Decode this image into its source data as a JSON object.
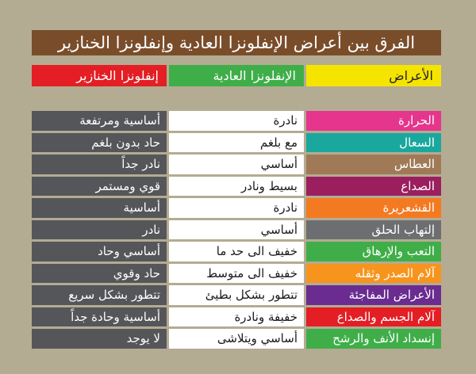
{
  "title": "الفرق بين أعراض الإنفلونزا العادية وإنفلونزا الخنازير",
  "headers": {
    "symptoms": "الأعراض",
    "normal": "الإنفلونزا العادية",
    "swine": "إنفلونزا الخنازير"
  },
  "colors": {
    "title_bg": "#7a4d2a",
    "symptoms_header": "#f5e400",
    "normal_header": "#3fae49",
    "swine_header": "#e31e24",
    "swine_cells": "#555659"
  },
  "rows": [
    {
      "symptom": "الحرارة",
      "normal": "نادرة",
      "swine": "أساسية ومرتفعة",
      "color": "#e5358c"
    },
    {
      "symptom": "السعال",
      "normal": "مع بلغم",
      "swine": "حاد بدون بلغم",
      "color": "#1aa89e"
    },
    {
      "symptom": "العطاس",
      "normal": "أساسي",
      "swine": "نادر جداً",
      "color": "#a07a57"
    },
    {
      "symptom": "الصداع",
      "normal": "بسيط ونادر",
      "swine": "قوي ومستمر",
      "color": "#9b1f5f"
    },
    {
      "symptom": "القشعريرة",
      "normal": "نادرة",
      "swine": "أساسية",
      "color": "#f47a22"
    },
    {
      "symptom": "إلتهاب الحلق",
      "normal": "أساسي",
      "swine": "نادر",
      "color": "#6d6e71"
    },
    {
      "symptom": "التعب والإرهاق",
      "normal": "خفيف الى حد ما",
      "swine": "أساسي وحاد",
      "color": "#3fae49"
    },
    {
      "symptom": "آلام الصدر وثقله",
      "normal": "خفيف الى متوسط",
      "swine": "حاد وقوي",
      "color": "#f7941d"
    },
    {
      "symptom": "الأعراض المفاجئة",
      "normal": "تتطور بشكل بطيئ",
      "swine": "تتطور بشكل سريع",
      "color": "#6a2c91"
    },
    {
      "symptom": "آلام الجسم والصداع",
      "normal": "خفيفة ونادرة",
      "swine": "أساسية وحادة جداً",
      "color": "#e31e24"
    },
    {
      "symptom": "إنسداد الأنف والرشح",
      "normal": "أساسي ويتلاشى",
      "swine": "لا يوجد",
      "color": "#3fae49"
    }
  ]
}
